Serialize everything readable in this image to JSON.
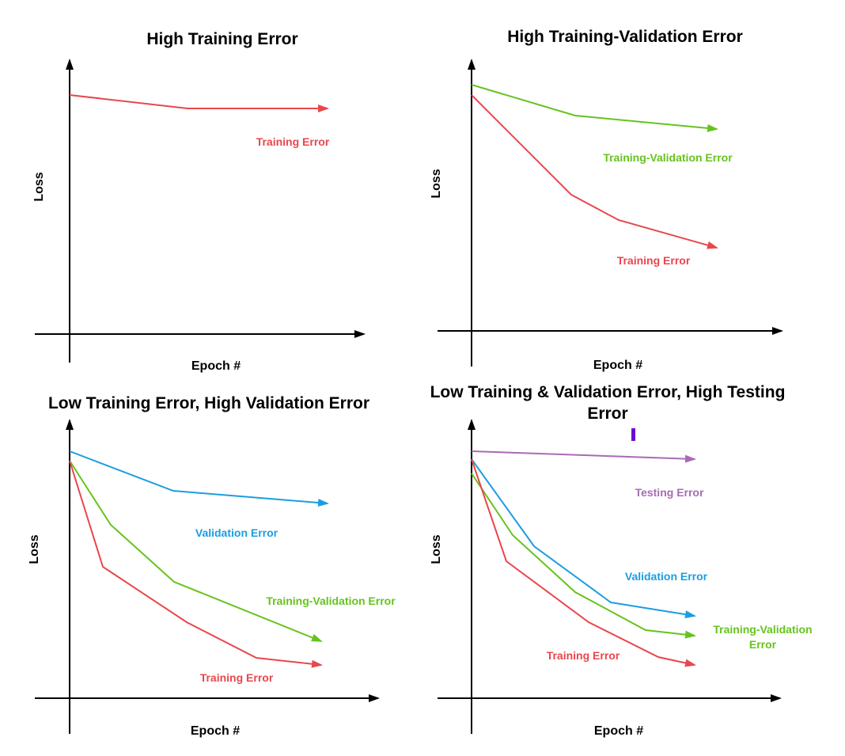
{
  "colors": {
    "axis": "#000000",
    "training": "#e8474c",
    "training_validation": "#66c31f",
    "validation": "#1a9ee0",
    "testing": "#a86bb3",
    "marker": "#6a0dd6"
  },
  "panels": [
    {
      "title": "High Training Error",
      "xlabel": "Epoch #",
      "ylabel": "Loss",
      "series": [
        {
          "key": "training",
          "label": "Training Error"
        }
      ]
    },
    {
      "title": "High Training-Validation Error",
      "xlabel": "Epoch #",
      "ylabel": "Loss",
      "series": [
        {
          "key": "training_validation",
          "label": "Training-Validation Error"
        },
        {
          "key": "training",
          "label": "Training Error"
        }
      ]
    },
    {
      "title": "Low Training Error, High Validation Error",
      "xlabel": "Epoch #",
      "ylabel": "Loss",
      "series": [
        {
          "key": "validation",
          "label": "Validation Error"
        },
        {
          "key": "training_validation",
          "label": "Training-Validation Error"
        },
        {
          "key": "training",
          "label": "Training Error"
        }
      ]
    },
    {
      "title_lines": [
        "Low Training & Validation Error, High Testing",
        "Error"
      ],
      "xlabel": "Epoch #",
      "ylabel": "Loss",
      "series": [
        {
          "key": "testing",
          "label": "Testing Error"
        },
        {
          "key": "validation",
          "label": "Validation Error"
        },
        {
          "key": "training_validation",
          "label_lines": [
            "Training-Validation",
            "Error"
          ]
        },
        {
          "key": "training",
          "label": "Training Error"
        }
      ]
    }
  ]
}
